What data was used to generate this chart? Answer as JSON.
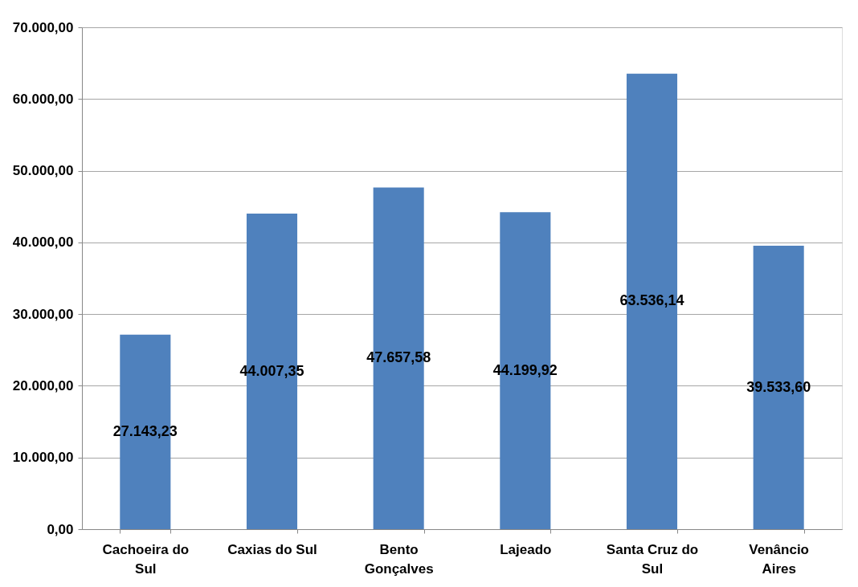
{
  "chart_data": {
    "type": "bar",
    "categories": [
      "Cachoeira do Sul",
      "Caxias do Sul",
      "Bento Gonçalves",
      "Lajeado",
      "Santa Cruz do Sul",
      "Venâncio Aires"
    ],
    "values": [
      27143.23,
      44007.35,
      47657.58,
      44199.92,
      63536.14,
      39533.6
    ],
    "value_labels": [
      "27.143,23",
      "44.007,35",
      "47.657,58",
      "44.199,92",
      "63.536,14",
      "39.533,60"
    ],
    "color": "#4f81bd",
    "ylim": [
      0,
      70000
    ],
    "yticks": [
      {
        "value": 0,
        "label": "0,00"
      },
      {
        "value": 10000,
        "label": "10.000,00"
      },
      {
        "value": 20000,
        "label": "20.000,00"
      },
      {
        "value": 30000,
        "label": "30.000,00"
      },
      {
        "value": 40000,
        "label": "40.000,00"
      },
      {
        "value": 50000,
        "label": "50.000,00"
      },
      {
        "value": 60000,
        "label": "60.000,00"
      },
      {
        "value": 70000,
        "label": "70.000,00"
      }
    ],
    "grid": "y"
  }
}
